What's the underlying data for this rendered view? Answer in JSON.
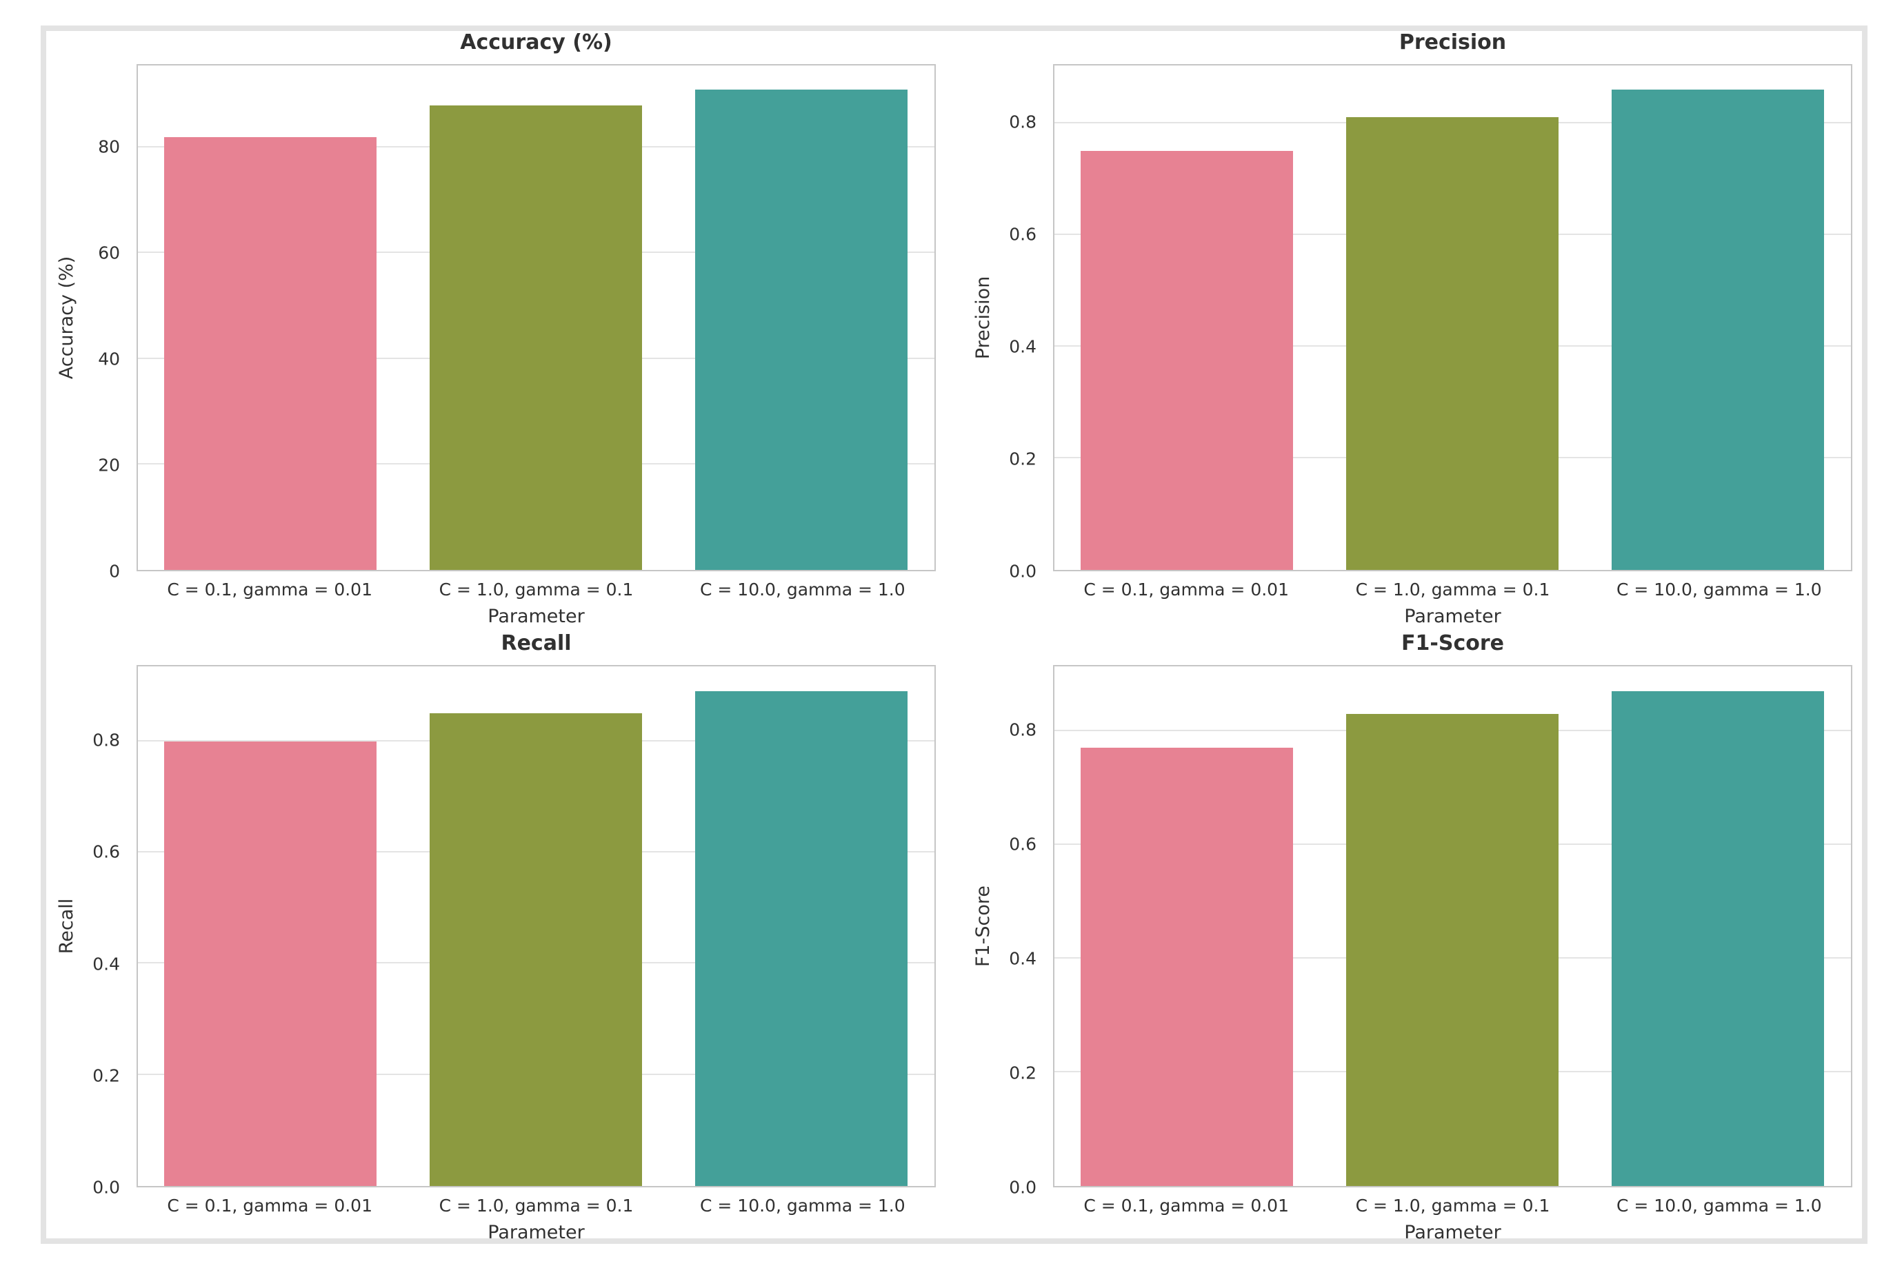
{
  "figure": {
    "border_color": "#e3e3e3",
    "background_color": "#ffffff",
    "spine_color": "#c6c6c6",
    "grid_color": "#e4e4e4",
    "text_color": "#313131",
    "bar_colors": [
      "#e78293",
      "#8c9a40",
      "#44a099"
    ]
  },
  "chart_data": [
    {
      "type": "bar",
      "title": "Accuracy (%)",
      "xlabel": "Parameter",
      "ylabel": "Accuracy (%)",
      "categories": [
        "C = 0.1, gamma = 0.01",
        "C = 1.0, gamma = 0.1",
        "C = 10.0, gamma = 1.0"
      ],
      "values": [
        82,
        88,
        91
      ],
      "yticks": [
        0,
        20,
        40,
        60,
        80
      ],
      "ytick_labels": [
        "0",
        "20",
        "40",
        "60",
        "80"
      ],
      "ylim": [
        0,
        95.55
      ],
      "grid": "horizontal",
      "legend": "none"
    },
    {
      "type": "bar",
      "title": "Precision",
      "xlabel": "Parameter",
      "ylabel": "Precision",
      "categories": [
        "C = 0.1, gamma = 0.01",
        "C = 1.0, gamma = 0.1",
        "C = 10.0, gamma = 1.0"
      ],
      "values": [
        0.75,
        0.81,
        0.86
      ],
      "yticks": [
        0,
        0.2,
        0.4,
        0.6,
        0.8
      ],
      "ytick_labels": [
        "0.0",
        "0.2",
        "0.4",
        "0.6",
        "0.8"
      ],
      "ylim": [
        0,
        0.903
      ],
      "grid": "horizontal",
      "legend": "none"
    },
    {
      "type": "bar",
      "title": "Recall",
      "xlabel": "Parameter",
      "ylabel": "Recall",
      "categories": [
        "C = 0.1, gamma = 0.01",
        "C = 1.0, gamma = 0.1",
        "C = 10.0, gamma = 1.0"
      ],
      "values": [
        0.8,
        0.85,
        0.89
      ],
      "yticks": [
        0,
        0.2,
        0.4,
        0.6,
        0.8
      ],
      "ytick_labels": [
        "0.0",
        "0.2",
        "0.4",
        "0.6",
        "0.8"
      ],
      "ylim": [
        0,
        0.9345
      ],
      "grid": "horizontal",
      "legend": "none"
    },
    {
      "type": "bar",
      "title": "F1-Score",
      "xlabel": "Parameter",
      "ylabel": "F1-Score",
      "categories": [
        "C = 0.1, gamma = 0.01",
        "C = 1.0, gamma = 0.1",
        "C = 10.0, gamma = 1.0"
      ],
      "values": [
        0.77,
        0.83,
        0.87
      ],
      "yticks": [
        0,
        0.2,
        0.4,
        0.6,
        0.8
      ],
      "ytick_labels": [
        "0.0",
        "0.2",
        "0.4",
        "0.6",
        "0.8"
      ],
      "ylim": [
        0,
        0.9135
      ],
      "grid": "horizontal",
      "legend": "none"
    }
  ]
}
